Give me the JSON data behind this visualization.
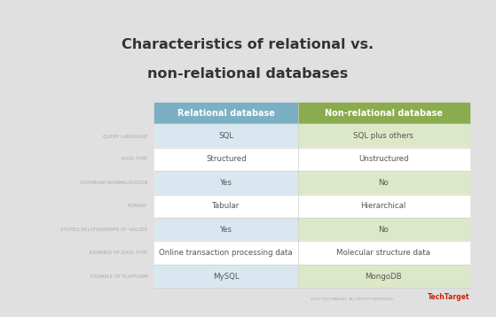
{
  "title_line1": "Characteristics of relational vs.",
  "title_line2": "non-relational databases",
  "col_headers": [
    "Relational database",
    "Non-relational database"
  ],
  "col_header_colors": [
    "#7bafc4",
    "#8aab4e"
  ],
  "col1_bg_colors": [
    "#d9e8f0",
    "#ffffff",
    "#d9e8f0",
    "#ffffff",
    "#d9e8f0",
    "#ffffff",
    "#d9e8f0"
  ],
  "col2_bg_colors": [
    "#dde8c8",
    "#ffffff",
    "#dde8c8",
    "#ffffff",
    "#dde8c8",
    "#ffffff",
    "#dde8c8"
  ],
  "row_labels": [
    "QUERY LANGUAGE",
    "DATA TYPE",
    "DATABASE NORMALIZATION",
    "FORMAT",
    "STORES RELATIONSHIPS OF VALUES",
    "EXAMPLE OF DATA TYPE",
    "EXAMPLE OF PLATFORM"
  ],
  "col1_values": [
    "SQL",
    "Structured",
    "Yes",
    "Tabular",
    "Yes",
    "Online transaction processing data",
    "MySQL"
  ],
  "col2_values": [
    "SQL plus others",
    "Unstructured",
    "No",
    "Hierarchical",
    "No",
    "Molecular structure data",
    "MongoDB"
  ],
  "outer_bg": "#e0e0e0",
  "card_bg": "#ffffff",
  "divider_color": "#d0d0d0",
  "label_color": "#aaaaaa",
  "value_color": "#555555",
  "header_text_color": "#ffffff",
  "title_color": "#333333",
  "watermark_color": "#cc2200",
  "watermark": "TechTarget",
  "watermark_prefix": "2023 TECHTARGET. ALL RIGHTS RESERVED.",
  "title_fontsize": 11.5,
  "header_fontsize": 7.0,
  "label_fontsize": 4.0,
  "value_fontsize": 6.2
}
